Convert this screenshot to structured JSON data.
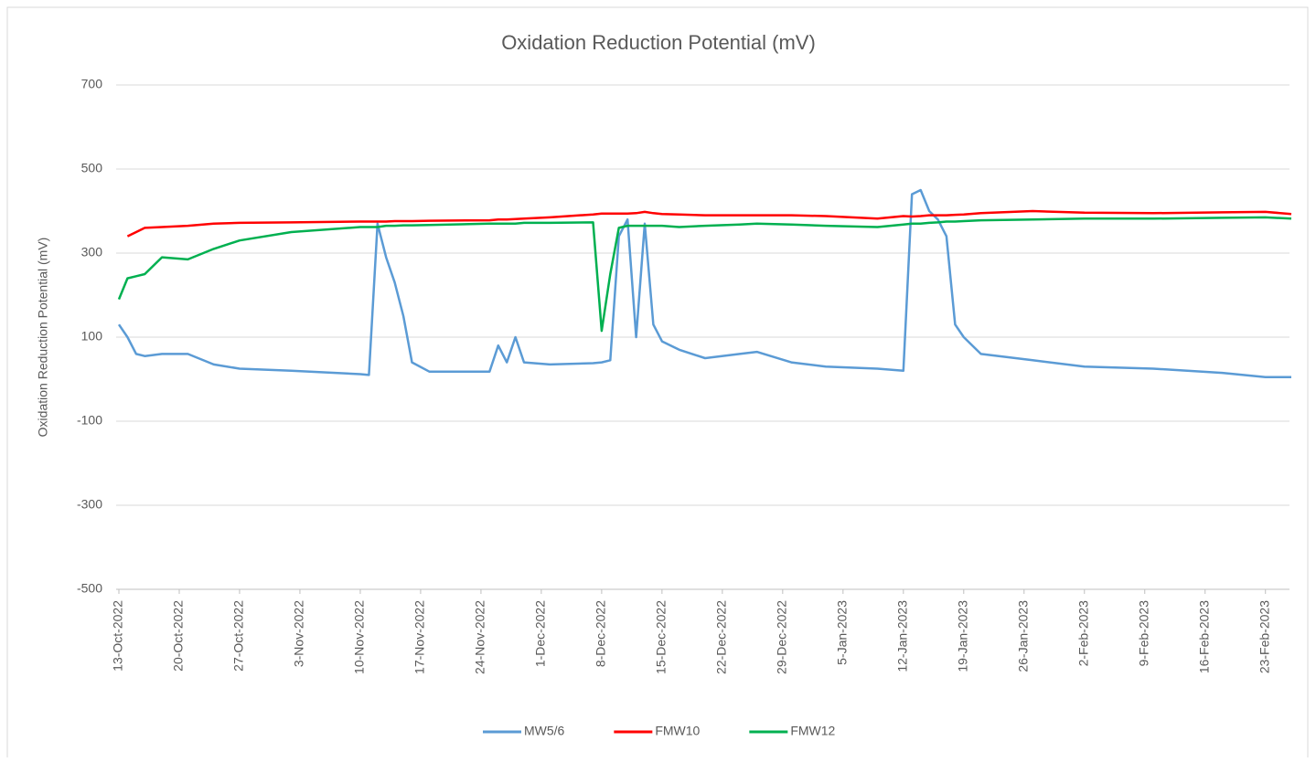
{
  "chart_data": {
    "type": "line",
    "title": "Oxidation Reduction  Potential (mV)",
    "y_label": "Oxidation Reduction Potential (mV)",
    "x": [
      "2022-10-13",
      "2022-10-14",
      "2022-10-15",
      "2022-10-16",
      "2022-10-18",
      "2022-10-21",
      "2022-10-24",
      "2022-10-27",
      "2022-11-02",
      "2022-11-10",
      "2022-11-11",
      "2022-11-12",
      "2022-11-13",
      "2022-11-14",
      "2022-11-15",
      "2022-11-16",
      "2022-11-18",
      "2022-11-25",
      "2022-11-26",
      "2022-11-27",
      "2022-11-28",
      "2022-11-29",
      "2022-12-02",
      "2022-12-07",
      "2022-12-08",
      "2022-12-09",
      "2022-12-10",
      "2022-12-11",
      "2022-12-12",
      "2022-12-13",
      "2022-12-14",
      "2022-12-15",
      "2022-12-17",
      "2022-12-20",
      "2022-12-24",
      "2022-12-26",
      "2022-12-30",
      "2023-01-03",
      "2023-01-09",
      "2023-01-12",
      "2023-01-13",
      "2023-01-14",
      "2023-01-15",
      "2023-01-16",
      "2023-01-17",
      "2023-01-18",
      "2023-01-19",
      "2023-01-21",
      "2023-01-27",
      "2023-02-02",
      "2023-02-10",
      "2023-02-18",
      "2023-02-23",
      "2023-02-26"
    ],
    "series": [
      {
        "name": "MW5/6",
        "color": "#5b9bd5",
        "values": [
          130,
          100,
          60,
          55,
          60,
          60,
          35,
          25,
          20,
          12,
          10,
          370,
          290,
          230,
          150,
          40,
          18,
          18,
          80,
          40,
          100,
          40,
          35,
          38,
          40,
          45,
          340,
          380,
          100,
          370,
          130,
          90,
          70,
          50,
          60,
          65,
          40,
          30,
          25,
          20,
          440,
          450,
          400,
          380,
          340,
          130,
          100,
          60,
          45,
          30,
          25,
          15,
          5,
          5
        ]
      },
      {
        "name": "FMW10",
        "color": "#ff0000",
        "values": [
          null,
          340,
          350,
          360,
          362,
          365,
          370,
          372,
          373,
          375,
          375,
          375,
          375,
          376,
          376,
          376,
          377,
          378,
          380,
          380,
          381,
          382,
          385,
          392,
          394,
          394,
          394,
          394,
          395,
          398,
          395,
          393,
          392,
          390,
          390,
          390,
          390,
          388,
          382,
          388,
          387,
          388,
          390,
          390,
          390,
          391,
          392,
          395,
          400,
          396,
          395,
          397,
          398,
          393
        ]
      },
      {
        "name": "FMW12",
        "color": "#00b050",
        "values": [
          190,
          240,
          245,
          250,
          290,
          285,
          310,
          330,
          350,
          362,
          362,
          362,
          365,
          365,
          366,
          366,
          367,
          370,
          370,
          370,
          370,
          372,
          372,
          373,
          115,
          250,
          360,
          365,
          365,
          365,
          365,
          365,
          362,
          365,
          368,
          370,
          368,
          365,
          362,
          368,
          370,
          370,
          372,
          373,
          375,
          375,
          376,
          378,
          380,
          382,
          382,
          384,
          385,
          382
        ]
      }
    ],
    "xlim": [
      "2022-10-13",
      "2023-02-26"
    ],
    "xticks": [
      {
        "value": "2022-10-13",
        "label": "13-Oct-2022"
      },
      {
        "value": "2022-10-20",
        "label": "20-Oct-2022"
      },
      {
        "value": "2022-10-27",
        "label": "27-Oct-2022"
      },
      {
        "value": "2022-11-03",
        "label": "3-Nov-2022"
      },
      {
        "value": "2022-11-10",
        "label": "10-Nov-2022"
      },
      {
        "value": "2022-11-17",
        "label": "17-Nov-2022"
      },
      {
        "value": "2022-11-24",
        "label": "24-Nov-2022"
      },
      {
        "value": "2022-12-01",
        "label": "1-Dec-2022"
      },
      {
        "value": "2022-12-08",
        "label": "8-Dec-2022"
      },
      {
        "value": "2022-12-15",
        "label": "15-Dec-2022"
      },
      {
        "value": "2022-12-22",
        "label": "22-Dec-2022"
      },
      {
        "value": "2022-12-29",
        "label": "29-Dec-2022"
      },
      {
        "value": "2023-01-05",
        "label": "5-Jan-2023"
      },
      {
        "value": "2023-01-12",
        "label": "12-Jan-2023"
      },
      {
        "value": "2023-01-19",
        "label": "19-Jan-2023"
      },
      {
        "value": "2023-01-26",
        "label": "26-Jan-2023"
      },
      {
        "value": "2023-02-02",
        "label": "2-Feb-2023"
      },
      {
        "value": "2023-02-09",
        "label": "9-Feb-2023"
      },
      {
        "value": "2023-02-16",
        "label": "16-Feb-2023"
      },
      {
        "value": "2023-02-23",
        "label": "23-Feb-2023"
      }
    ],
    "ylim": [
      -500,
      700
    ],
    "yticks": [
      -500,
      -300,
      -100,
      100,
      300,
      500,
      700
    ],
    "grid": true,
    "legend": "bottom"
  }
}
